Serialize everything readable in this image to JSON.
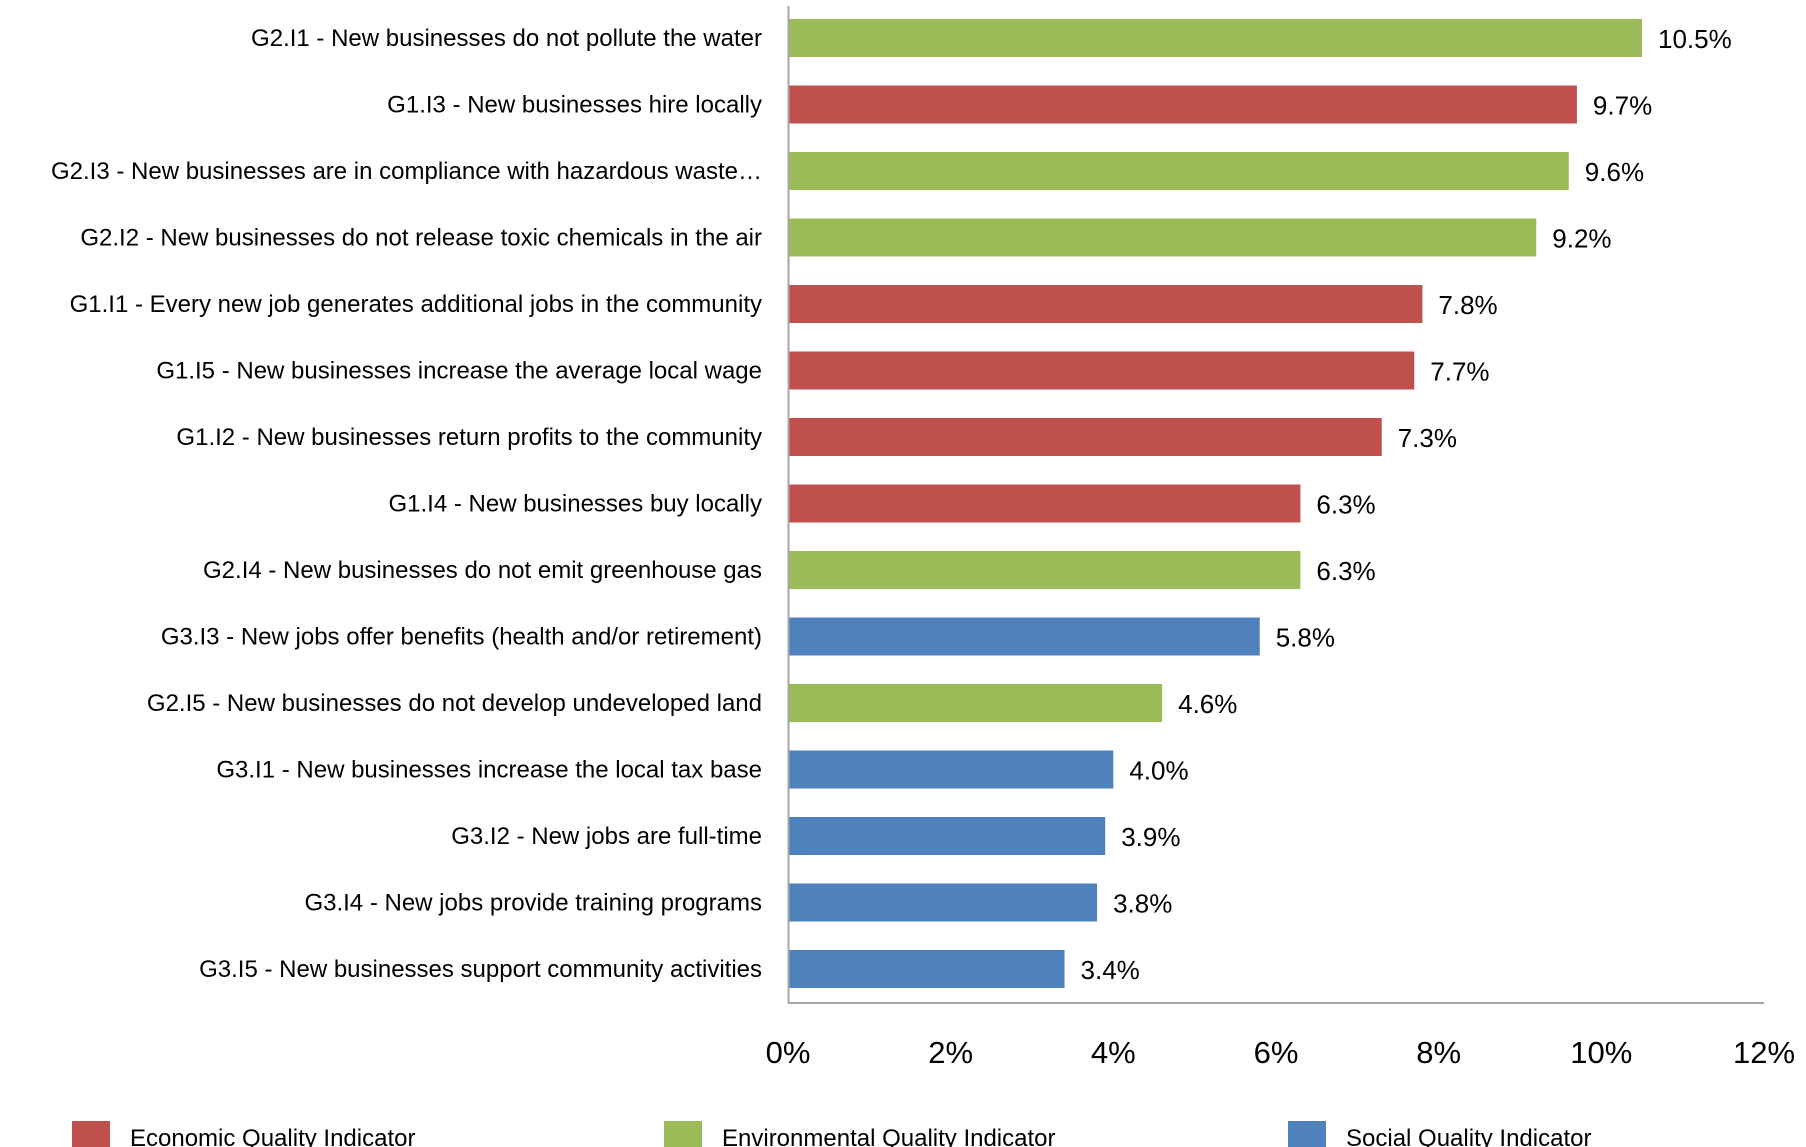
{
  "chart_data": {
    "type": "bar",
    "orientation": "horizontal",
    "categories": [
      "G2.I1 - New businesses do not pollute the water",
      "G1.I3 - New businesses hire locally",
      "G2.I3 - New businesses are in compliance with hazardous waste…",
      "G2.I2 - New businesses do not release toxic chemicals in the air",
      "G1.I1 - Every new job generates additional jobs in the community",
      "G1.I5 - New businesses increase the average local wage",
      "G1.I2 - New businesses return profits to the community",
      "G1.I4 - New businesses buy locally",
      "G2.I4 - New businesses do not emit greenhouse gas",
      "G3.I3 - New jobs offer benefits (health and/or retirement)",
      "G2.I5 - New businesses do not develop undeveloped land",
      "G3.I1 - New businesses increase the local tax base",
      "G3.I2 - New jobs are full-time",
      "G3.I4 - New jobs provide training programs",
      "G3.I5 - New businesses support community activities"
    ],
    "values": [
      10.5,
      9.7,
      9.6,
      9.2,
      7.8,
      7.7,
      7.3,
      6.3,
      6.3,
      5.8,
      4.6,
      4.0,
      3.9,
      3.8,
      3.4
    ],
    "value_labels": [
      "10.5%",
      "9.7%",
      "9.6%",
      "9.2%",
      "7.8%",
      "7.7%",
      "7.3%",
      "6.3%",
      "6.3%",
      "5.8%",
      "4.6%",
      "4.0%",
      "3.9%",
      "3.8%",
      "3.4%"
    ],
    "groups": [
      "Environmental",
      "Economic",
      "Environmental",
      "Environmental",
      "Economic",
      "Economic",
      "Economic",
      "Economic",
      "Environmental",
      "Social",
      "Environmental",
      "Social",
      "Social",
      "Social",
      "Social"
    ],
    "xlim": [
      0,
      12
    ],
    "x_ticks": [
      0,
      2,
      4,
      6,
      8,
      10,
      12
    ],
    "x_tick_labels": [
      "0%",
      "2%",
      "4%",
      "6%",
      "8%",
      "10%",
      "12%"
    ],
    "grid": false,
    "legend_position": "bottom",
    "legend": [
      {
        "group": "Economic",
        "label": "Economic Quality Indicator",
        "color": "#c0504d"
      },
      {
        "group": "Environmental",
        "label": "Environmental Quality Indicator",
        "color": "#9bbb59"
      },
      {
        "group": "Social",
        "label": "Social Quality Indicator",
        "color": "#4f81bd"
      }
    ],
    "axis_color": "#a6a6a6"
  }
}
